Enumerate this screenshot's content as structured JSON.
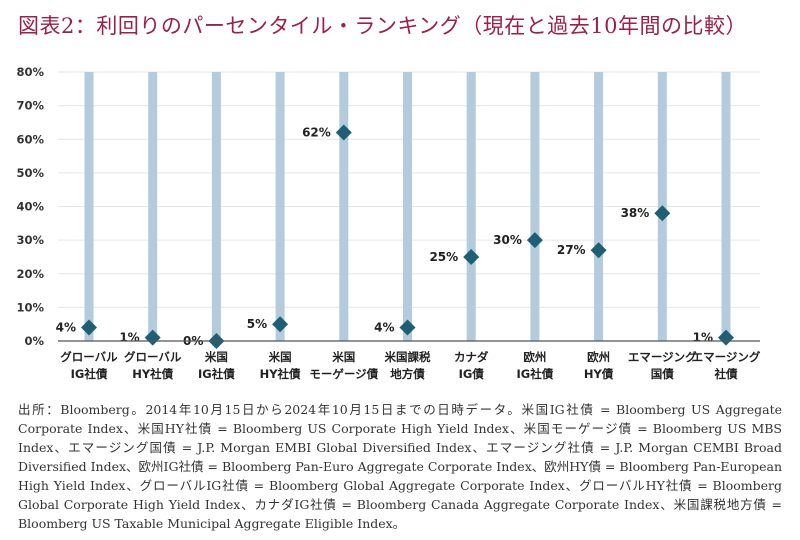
{
  "title": "図表2：利回りのパーセンタイル・ランキング（現在と過去10年間の比較）",
  "source": "出所：Bloomberg。2014年10月15日から2024年10月15日までの日時データ。米国IG社債 = Bloomberg US Aggregate Corporate Index、米国HY社債 = Bloomberg US Corporate High Yield Index、米国モーゲージ債 = Bloomberg US MBS Index、エマージング国債 = J.P. Morgan EMBI Global Diversified Index、エマージング社債 = J.P. Morgan CEMBI Broad Diversified Index、欧州IG社債 = Bloomberg Pan-Euro Aggregate Corporate Index、欧州HY債 = Bloomberg Pan-European High Yield Index、グローバルIG社債 = Bloomberg Global Aggregate Corporate Index、グローバルHY社債 = Bloomberg Global Corporate High Yield Index、カナダIG社債 = Bloomberg Canada Aggregate Corporate Index、米国課税地方債 = Bloomberg US Taxable Municipal Aggregate Eligible Index。",
  "colors": {
    "title": "#9b2246",
    "bar": "#b3cbdc",
    "marker": "#1f5f75",
    "grid": "#e6e6e6"
  },
  "chart_data": {
    "type": "scatter",
    "ylim": [
      0,
      80
    ],
    "yticks": [
      "0%",
      "10%",
      "20%",
      "30%",
      "40%",
      "50%",
      "60%",
      "70%",
      "80%"
    ],
    "grid": true,
    "categories": [
      [
        "グローバル",
        "IG社債"
      ],
      [
        "グローバル",
        "HY社債"
      ],
      [
        "米国",
        "IG社債"
      ],
      [
        "米国",
        "HY社債"
      ],
      [
        "米国",
        "モーゲージ債"
      ],
      [
        "米国課税",
        "地方債"
      ],
      [
        "カナダ",
        "IG債"
      ],
      [
        "欧州",
        "IG社債"
      ],
      [
        "欧州",
        "HY債"
      ],
      [
        "エマージング",
        "国債"
      ],
      [
        "エマージング",
        "社債"
      ]
    ],
    "values": [
      4,
      1,
      0,
      5,
      62,
      4,
      25,
      30,
      27,
      38,
      1
    ],
    "labels": [
      "4%",
      "1%",
      "0%",
      "5%",
      "62%",
      "4%",
      "25%",
      "30%",
      "27%",
      "38%",
      "1%"
    ],
    "range": [
      80,
      80,
      80,
      80,
      80,
      80,
      80,
      80,
      80,
      80,
      80
    ]
  }
}
